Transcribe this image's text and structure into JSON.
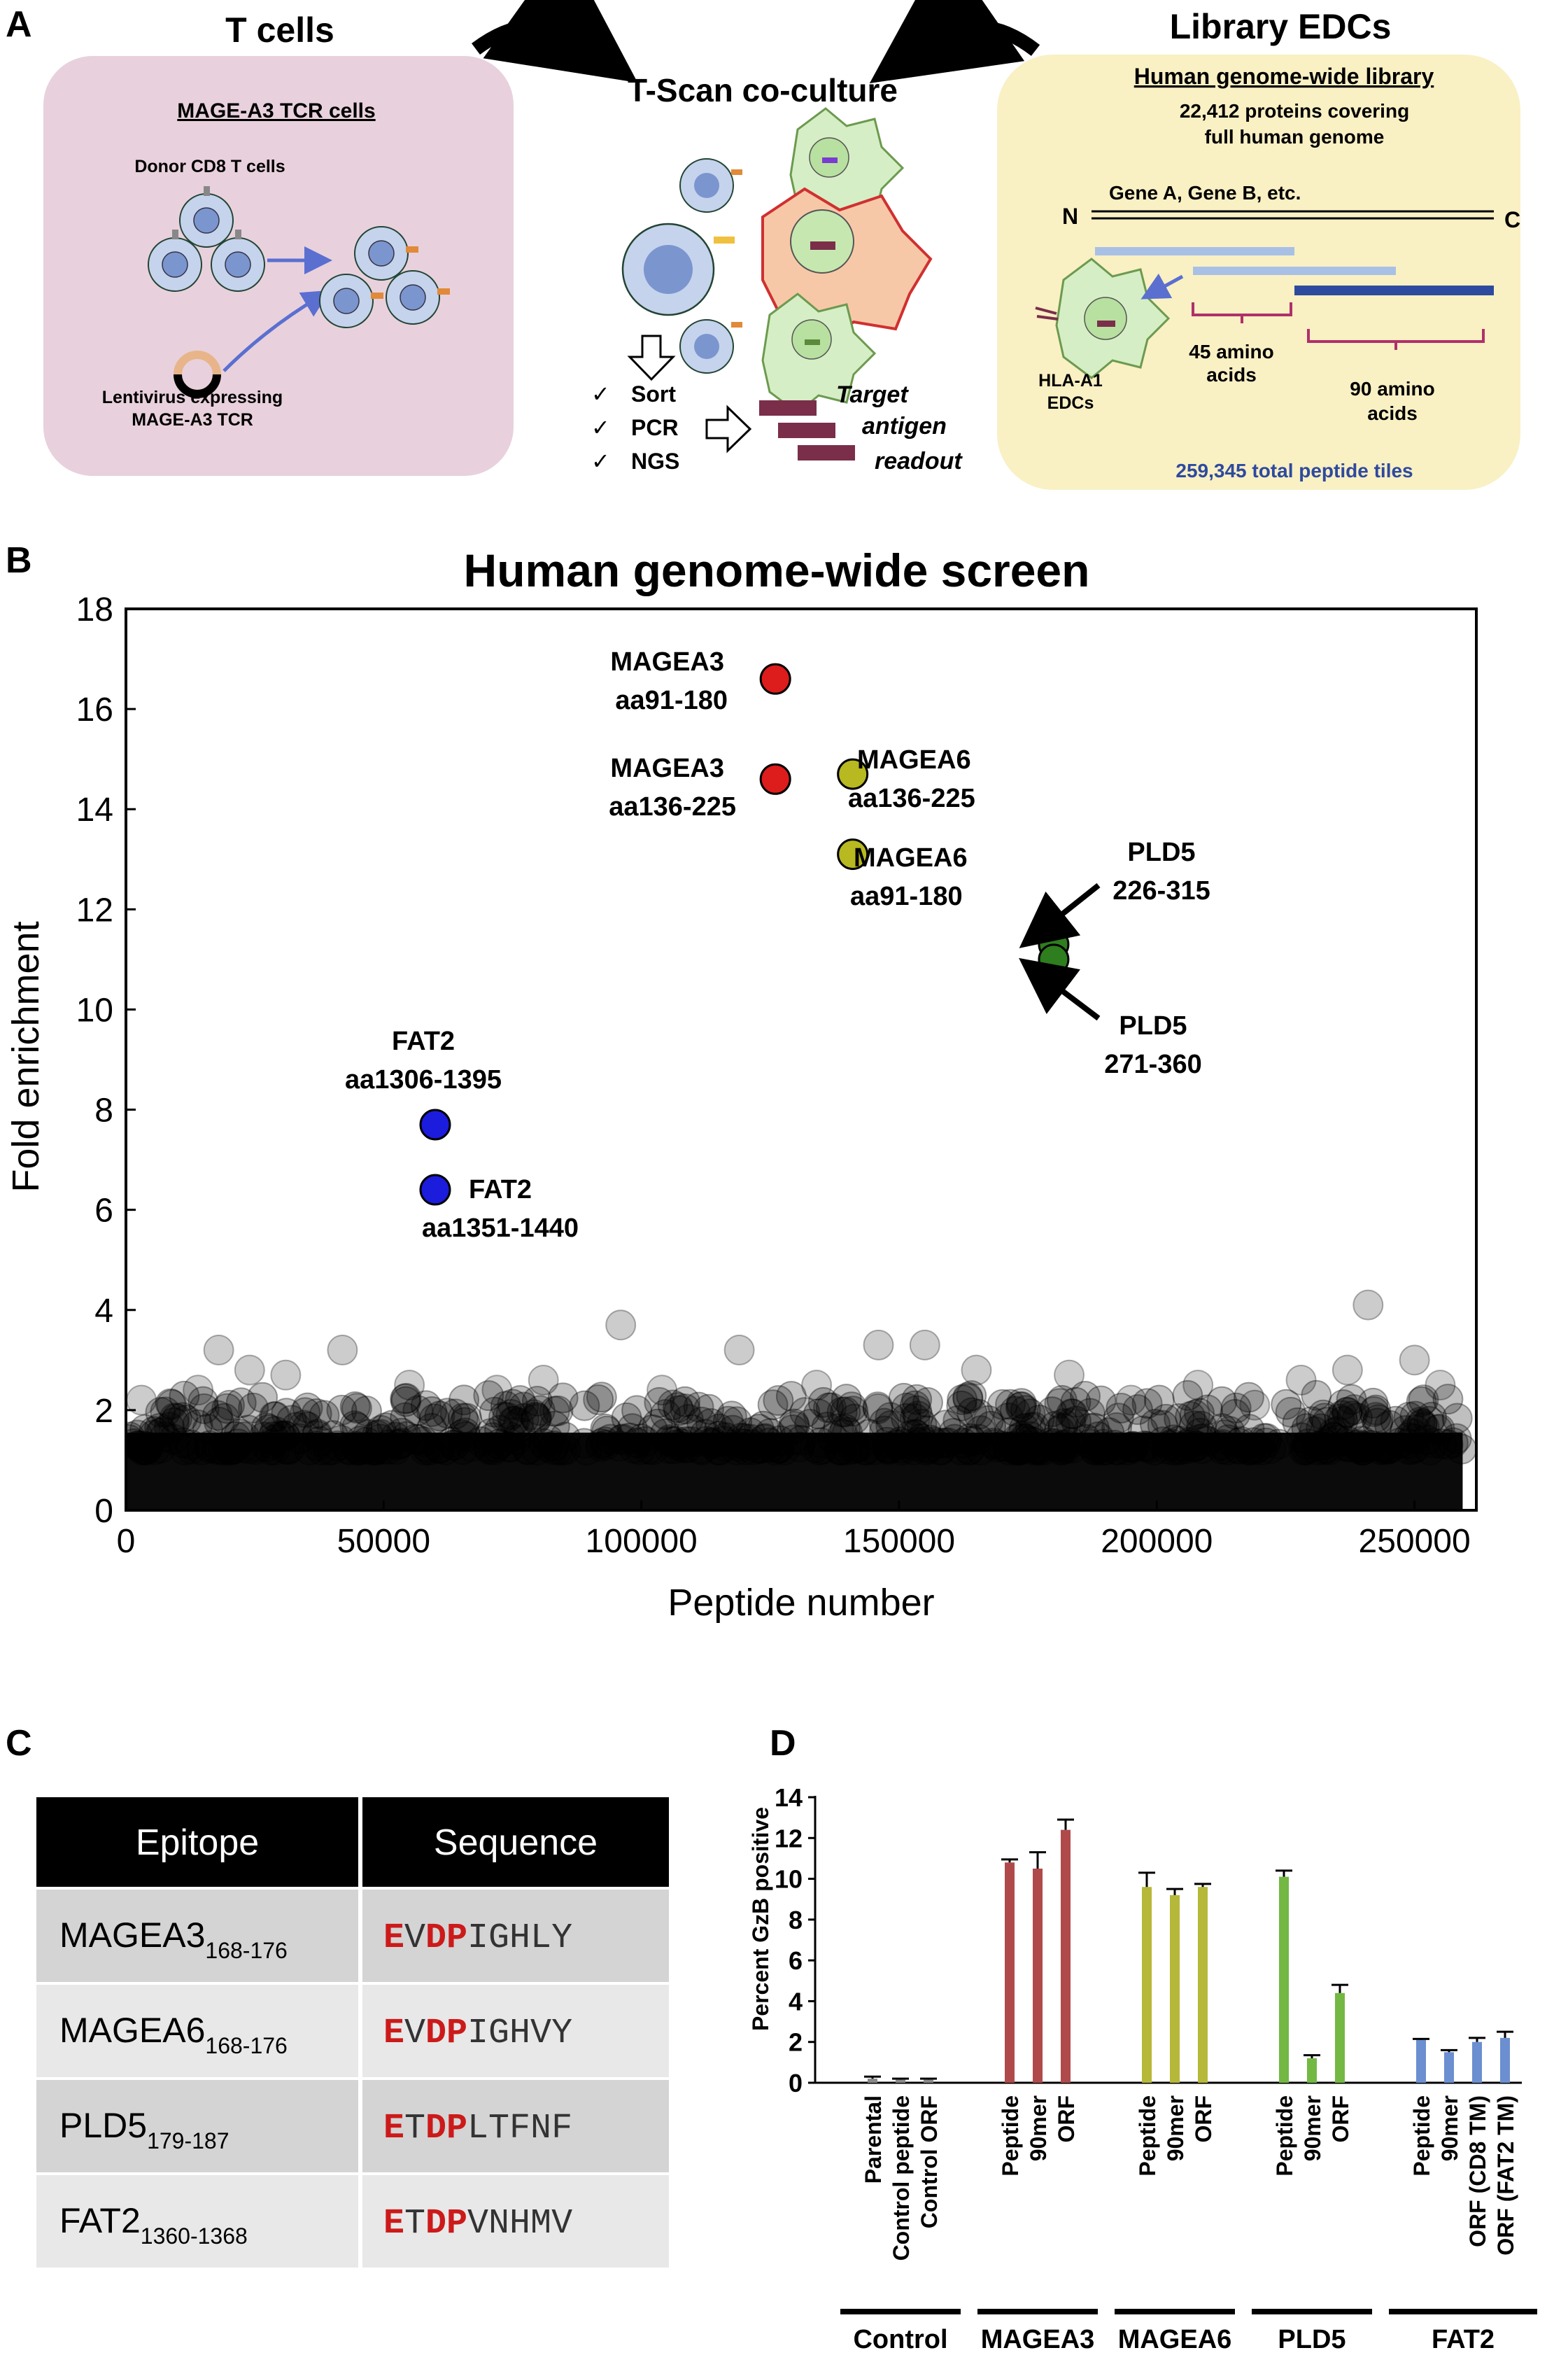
{
  "panel_labels": {
    "a": "A",
    "b": "B",
    "c": "C",
    "d": "D"
  },
  "panel_a": {
    "tcells": {
      "heading": "T cells",
      "box_title": "MAGE-A3 TCR cells",
      "donor_label": "Donor CD8 T cells",
      "lenti_label_line1": "Lentivirus expressing",
      "lenti_label_line2": "MAGE-A3 TCR"
    },
    "coculture": {
      "heading": "T-Scan co-culture",
      "steps": [
        "Sort",
        "PCR",
        "NGS"
      ],
      "checkmark": "✓",
      "readout_lines": [
        "Target",
        "antigen",
        "readout"
      ]
    },
    "library": {
      "heading": "Library EDCs",
      "box_title": "Human genome-wide library",
      "desc_line1": "22,412 proteins covering",
      "desc_line2": "full human genome",
      "gene_label": "Gene A, Gene B, etc.",
      "n_label": "N",
      "c_label": "C",
      "edc_label_line1": "HLA-A1",
      "edc_label_line2": "EDCs",
      "tile45_line1": "45 amino",
      "tile45_line2": "acids",
      "tile90_line1": "90 amino",
      "tile90_line2": "acids",
      "total_tiles": "259,345 total peptide tiles"
    },
    "colors": {
      "tcell_box": "#e8d1dc",
      "library_box": "#f9f0c4",
      "tcell_fill": "#c5d3ec",
      "edc_fill": "#d6eec5",
      "edc_stroke": "#6c9a4f",
      "arrow_blue": "#5a6fd0",
      "readout_bar": "#7a2e4a",
      "tile_light": "#a9c0e6",
      "tile_dark": "#2e4a9e",
      "bracket": "#b0306a",
      "total_tiles_text": "#2e4a9e"
    }
  },
  "chart_b": {
    "type": "scatter",
    "title": "Human genome-wide screen",
    "xlabel": "Peptide number",
    "ylabel": "Fold enrichment",
    "xlim": [
      0,
      262000
    ],
    "ylim": [
      0,
      18
    ],
    "xticks": [
      0,
      50000,
      100000,
      150000,
      200000,
      250000
    ],
    "xtick_labels": [
      "0",
      "50000",
      "100000",
      "150000",
      "200000",
      "250000"
    ],
    "yticks": [
      0,
      2,
      4,
      6,
      8,
      10,
      12,
      14,
      16,
      18
    ],
    "ytick_labels": [
      "0",
      "2",
      "4",
      "6",
      "8",
      "10",
      "12",
      "14",
      "16",
      "18"
    ],
    "grid": false,
    "background_outliers": [
      {
        "x": 14000,
        "y": 2.4
      },
      {
        "x": 18000,
        "y": 3.2
      },
      {
        "x": 24000,
        "y": 2.8
      },
      {
        "x": 31000,
        "y": 2.7
      },
      {
        "x": 42000,
        "y": 3.2
      },
      {
        "x": 55000,
        "y": 2.5
      },
      {
        "x": 72000,
        "y": 2.4
      },
      {
        "x": 81000,
        "y": 2.6
      },
      {
        "x": 96000,
        "y": 3.7
      },
      {
        "x": 104000,
        "y": 2.4
      },
      {
        "x": 119000,
        "y": 3.2
      },
      {
        "x": 134000,
        "y": 2.5
      },
      {
        "x": 146000,
        "y": 3.3
      },
      {
        "x": 155000,
        "y": 3.3
      },
      {
        "x": 165000,
        "y": 2.8
      },
      {
        "x": 183000,
        "y": 2.7
      },
      {
        "x": 195000,
        "y": 2.2
      },
      {
        "x": 208000,
        "y": 2.5
      },
      {
        "x": 219000,
        "y": 2.1
      },
      {
        "x": 228000,
        "y": 2.6
      },
      {
        "x": 237000,
        "y": 2.8
      },
      {
        "x": 241000,
        "y": 4.1
      },
      {
        "x": 250000,
        "y": 3.0
      },
      {
        "x": 255000,
        "y": 2.5
      },
      {
        "x": 3000,
        "y": 2.2
      }
    ],
    "highlighted": [
      {
        "name": "MAGEA3",
        "range": "aa91-180",
        "x": 126000,
        "y": 16.6,
        "color": "#dd1c1c"
      },
      {
        "name": "MAGEA3",
        "range": "aa136-225",
        "x": 126000,
        "y": 14.6,
        "color": "#dd1c1c"
      },
      {
        "name": "MAGEA6",
        "range": "aa136-225",
        "x": 141000,
        "y": 14.7,
        "color": "#b8b820"
      },
      {
        "name": "MAGEA6",
        "range": "aa91-180",
        "x": 141000,
        "y": 13.1,
        "color": "#b8b820"
      },
      {
        "name": "PLD5",
        "range": "226-315",
        "x": 180000,
        "y": 11.3,
        "color": "#2e7d1f"
      },
      {
        "name": "PLD5",
        "range": "271-360",
        "x": 180000,
        "y": 11.0,
        "color": "#2e7d1f"
      },
      {
        "name": "FAT2",
        "range": "aa1306-1395",
        "x": 60000,
        "y": 7.7,
        "color": "#1c1cdd"
      },
      {
        "name": "FAT2",
        "range": "aa1351-1440",
        "x": 60000,
        "y": 6.4,
        "color": "#1c1cdd"
      }
    ]
  },
  "table_c": {
    "headers": [
      "Epitope",
      "Sequence"
    ],
    "rows": [
      {
        "name": "MAGEA3",
        "sub": "168-176",
        "seq": [
          {
            "t": "E",
            "hl": true
          },
          {
            "t": "V",
            "hl": false
          },
          {
            "t": "DP",
            "hl": true
          },
          {
            "t": "IGHLY",
            "hl": false
          }
        ]
      },
      {
        "name": "MAGEA6",
        "sub": "168-176",
        "seq": [
          {
            "t": "E",
            "hl": true
          },
          {
            "t": "V",
            "hl": false
          },
          {
            "t": "DP",
            "hl": true
          },
          {
            "t": "IGHVY",
            "hl": false
          }
        ]
      },
      {
        "name": "PLD5",
        "sub": "179-187",
        "seq": [
          {
            "t": "E",
            "hl": true
          },
          {
            "t": "T",
            "hl": false
          },
          {
            "t": "DP",
            "hl": true
          },
          {
            "t": "LTFNF",
            "hl": false
          }
        ]
      },
      {
        "name": "FAT2",
        "sub": "1360-1368",
        "seq": [
          {
            "t": "E",
            "hl": true
          },
          {
            "t": "T",
            "hl": false
          },
          {
            "t": "DP",
            "hl": true
          },
          {
            "t": "VNHMV",
            "hl": false
          }
        ]
      }
    ],
    "colors": {
      "header_bg": "#000000",
      "row_odd": "#d4d4d4",
      "row_even": "#e8e8e8",
      "highlight": "#cc1a1a"
    }
  },
  "chart_d": {
    "type": "bar",
    "ylabel": "Percent GzB positive",
    "ylim": [
      0,
      14
    ],
    "yticks": [
      0,
      2,
      4,
      6,
      8,
      10,
      12,
      14
    ],
    "ytick_labels": [
      "0",
      "2",
      "4",
      "6",
      "8",
      "10",
      "12",
      "14"
    ],
    "groups": [
      {
        "name": "Control",
        "color": "#888888",
        "bars": [
          {
            "label": "Parental",
            "value": 0.2,
            "err": 0.1
          },
          {
            "label": "Control peptide",
            "value": 0.15,
            "err": 0.05
          },
          {
            "label": "Control ORF",
            "value": 0.15,
            "err": 0.05
          }
        ]
      },
      {
        "name": "MAGEA3",
        "color": "#b04a4a",
        "bars": [
          {
            "label": "Peptide",
            "value": 10.8,
            "err": 0.15
          },
          {
            "label": "90mer",
            "value": 10.5,
            "err": 0.8
          },
          {
            "label": "ORF",
            "value": 12.4,
            "err": 0.5
          }
        ]
      },
      {
        "name": "MAGEA6",
        "color": "#b5b838",
        "bars": [
          {
            "label": "Peptide",
            "value": 9.6,
            "err": 0.7
          },
          {
            "label": "90mer",
            "value": 9.2,
            "err": 0.3
          },
          {
            "label": "ORF",
            "value": 9.6,
            "err": 0.15
          }
        ]
      },
      {
        "name": "PLD5",
        "color": "#72b843",
        "bars": [
          {
            "label": "Peptide",
            "value": 10.1,
            "err": 0.3
          },
          {
            "label": "90mer",
            "value": 1.2,
            "err": 0.15
          },
          {
            "label": "ORF",
            "value": 4.4,
            "err": 0.4
          }
        ]
      },
      {
        "name": "FAT2",
        "color": "#6b8fd0",
        "bars": [
          {
            "label": "Peptide",
            "value": 2.1,
            "err": 0.05
          },
          {
            "label": "90mer",
            "value": 1.5,
            "err": 0.1
          },
          {
            "label": "ORF (CD8 TM)",
            "value": 2.0,
            "err": 0.2
          },
          {
            "label": "ORF (FAT2 TM)",
            "value": 2.2,
            "err": 0.3
          }
        ]
      }
    ]
  }
}
